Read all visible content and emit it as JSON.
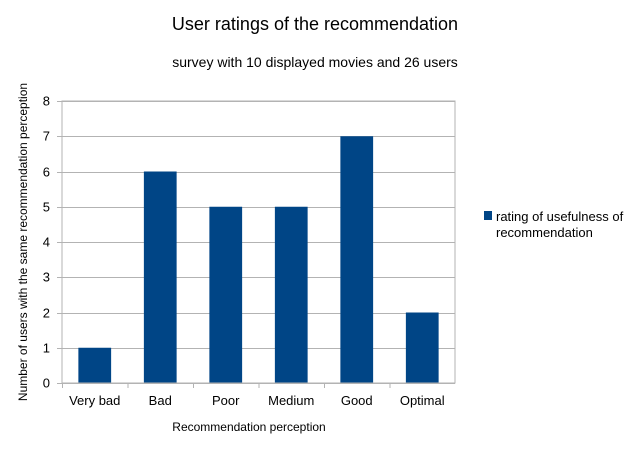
{
  "chart_data": {
    "type": "bar",
    "title": "User ratings of the recommendation",
    "subtitle": "survey with 10 displayed movies and 26 users",
    "xlabel": "Recommendation perception",
    "ylabel": "Number of users with the same recommendation perception",
    "categories": [
      "Very bad",
      "Bad",
      "Poor",
      "Medium",
      "Good",
      "Optimal"
    ],
    "series": [
      {
        "name": "rating of usefulness of recommendation",
        "values": [
          1,
          6,
          5,
          5,
          7,
          2
        ]
      }
    ],
    "ylim": [
      0,
      8
    ],
    "yticks": [
      0,
      1,
      2,
      3,
      4,
      5,
      6,
      7,
      8
    ],
    "grid": true,
    "legend_position": "right",
    "colors": {
      "bar": "#004586",
      "grid": "#b3b3b3"
    }
  },
  "legend": {
    "line1": "rating of usefulness of",
    "line2": "recommendation"
  }
}
